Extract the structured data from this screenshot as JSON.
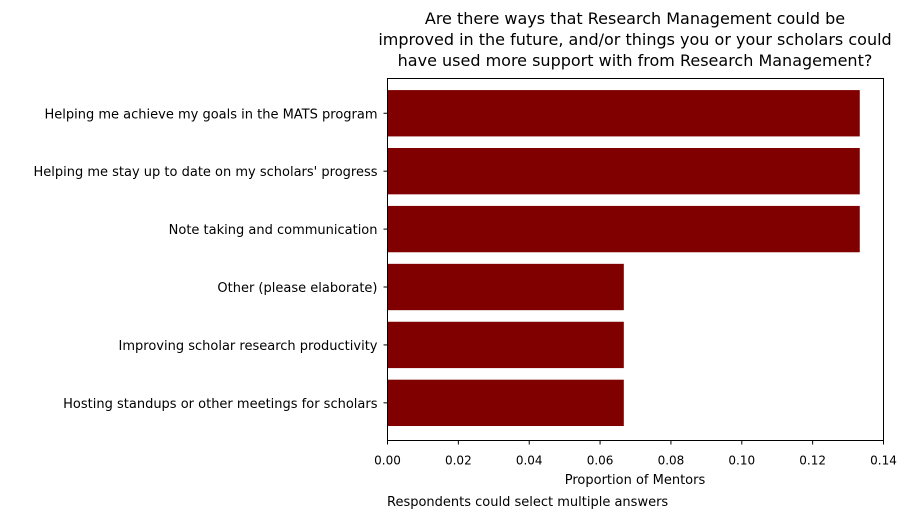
{
  "chart_data": {
    "type": "bar",
    "orientation": "horizontal",
    "title_lines": [
      "Are there ways that Research Management could be",
      "improved in the future, and/or things you or your scholars could",
      "have used more support with from Research Management?"
    ],
    "categories": [
      "Helping me achieve my goals in the MATS program",
      "Helping me stay up to date on my scholars' progress",
      "Note taking and communication",
      "Other (please elaborate)",
      "Improving scholar research productivity",
      "Hosting standups or other meetings for scholars"
    ],
    "values": [
      0.1333,
      0.1333,
      0.1333,
      0.0667,
      0.0667,
      0.0667
    ],
    "xlabel": "Proportion of Mentors",
    "xlim": [
      0,
      0.14
    ],
    "xticks": [
      "0.00",
      "0.02",
      "0.04",
      "0.06",
      "0.08",
      "0.10",
      "0.12",
      "0.14"
    ],
    "note": "Respondents could select multiple answers",
    "bar_color": "#800000",
    "grid": false
  }
}
